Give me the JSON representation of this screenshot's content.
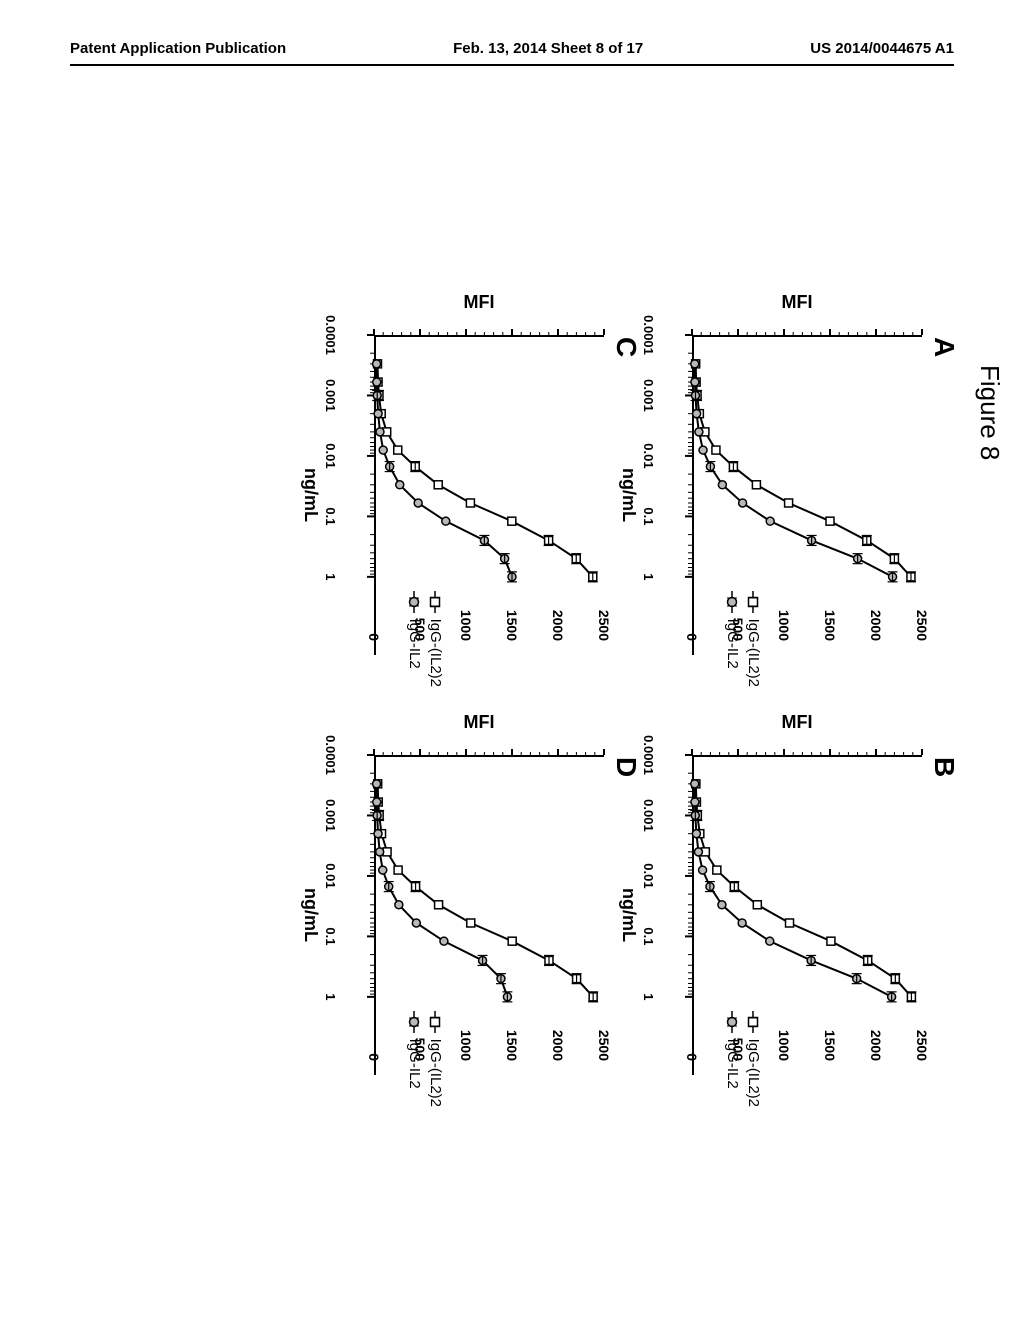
{
  "header": {
    "left": "Patent Application Publication",
    "center": "Feb. 13, 2014  Sheet 8 of 17",
    "right": "US 2014/0044675 A1"
  },
  "figure": {
    "title": "Figure 8",
    "panels": [
      "A",
      "B",
      "C",
      "D"
    ],
    "y_label": "MFI",
    "x_label": "ng/mL",
    "y_ticks": [
      0,
      500,
      1000,
      1500,
      2000,
      2500
    ],
    "x_ticks": [
      0.0001,
      0.001,
      0.01,
      0.1,
      1
    ],
    "ylim": [
      0,
      2500
    ],
    "xlim_log": [
      -4,
      0.3
    ],
    "legend": [
      {
        "label": "IgG-(IL2)2",
        "marker": "square"
      },
      {
        "label": "IgG-IL2",
        "marker": "circle"
      }
    ],
    "line_color": "#000000",
    "marker_stroke": "#000000",
    "square_fill": "#ffffff",
    "circle_fill": "#b8b8b8",
    "line_width": 2,
    "marker_size": 8,
    "panel_data": {
      "A": {
        "series1": [
          {
            "x": 0.0003,
            "y": 40
          },
          {
            "x": 0.0006,
            "y": 45
          },
          {
            "x": 0.001,
            "y": 55
          },
          {
            "x": 0.002,
            "y": 80
          },
          {
            "x": 0.004,
            "y": 140
          },
          {
            "x": 0.008,
            "y": 260
          },
          {
            "x": 0.015,
            "y": 450
          },
          {
            "x": 0.03,
            "y": 700
          },
          {
            "x": 0.06,
            "y": 1050
          },
          {
            "x": 0.12,
            "y": 1500
          },
          {
            "x": 0.25,
            "y": 1900
          },
          {
            "x": 0.5,
            "y": 2200
          },
          {
            "x": 1,
            "y": 2380
          }
        ],
        "series2": [
          {
            "x": 0.0003,
            "y": 30
          },
          {
            "x": 0.0006,
            "y": 32
          },
          {
            "x": 0.001,
            "y": 38
          },
          {
            "x": 0.002,
            "y": 50
          },
          {
            "x": 0.004,
            "y": 75
          },
          {
            "x": 0.008,
            "y": 120
          },
          {
            "x": 0.015,
            "y": 200
          },
          {
            "x": 0.03,
            "y": 330
          },
          {
            "x": 0.06,
            "y": 550
          },
          {
            "x": 0.12,
            "y": 850
          },
          {
            "x": 0.25,
            "y": 1300
          },
          {
            "x": 0.5,
            "y": 1800
          },
          {
            "x": 1,
            "y": 2180
          }
        ]
      },
      "B": {
        "series1": [
          {
            "x": 0.0003,
            "y": 42
          },
          {
            "x": 0.0006,
            "y": 48
          },
          {
            "x": 0.001,
            "y": 58
          },
          {
            "x": 0.002,
            "y": 85
          },
          {
            "x": 0.004,
            "y": 145
          },
          {
            "x": 0.008,
            "y": 270
          },
          {
            "x": 0.015,
            "y": 460
          },
          {
            "x": 0.03,
            "y": 710
          },
          {
            "x": 0.06,
            "y": 1060
          },
          {
            "x": 0.12,
            "y": 1510
          },
          {
            "x": 0.25,
            "y": 1910
          },
          {
            "x": 0.5,
            "y": 2210
          },
          {
            "x": 1,
            "y": 2385
          }
        ],
        "series2": [
          {
            "x": 0.0003,
            "y": 30
          },
          {
            "x": 0.0006,
            "y": 32
          },
          {
            "x": 0.001,
            "y": 36
          },
          {
            "x": 0.002,
            "y": 48
          },
          {
            "x": 0.004,
            "y": 70
          },
          {
            "x": 0.008,
            "y": 115
          },
          {
            "x": 0.015,
            "y": 195
          },
          {
            "x": 0.03,
            "y": 325
          },
          {
            "x": 0.06,
            "y": 545
          },
          {
            "x": 0.12,
            "y": 845
          },
          {
            "x": 0.25,
            "y": 1295
          },
          {
            "x": 0.5,
            "y": 1790
          },
          {
            "x": 1,
            "y": 2170
          }
        ]
      },
      "C": {
        "series1": [
          {
            "x": 0.0003,
            "y": 38
          },
          {
            "x": 0.0006,
            "y": 44
          },
          {
            "x": 0.001,
            "y": 54
          },
          {
            "x": 0.002,
            "y": 78
          },
          {
            "x": 0.004,
            "y": 138
          },
          {
            "x": 0.008,
            "y": 258
          },
          {
            "x": 0.015,
            "y": 448
          },
          {
            "x": 0.03,
            "y": 698
          },
          {
            "x": 0.06,
            "y": 1048
          },
          {
            "x": 0.12,
            "y": 1498
          },
          {
            "x": 0.25,
            "y": 1898
          },
          {
            "x": 0.5,
            "y": 2198
          },
          {
            "x": 1,
            "y": 2378
          }
        ],
        "series2": [
          {
            "x": 0.0003,
            "y": 28
          },
          {
            "x": 0.0006,
            "y": 30
          },
          {
            "x": 0.001,
            "y": 35
          },
          {
            "x": 0.002,
            "y": 45
          },
          {
            "x": 0.004,
            "y": 65
          },
          {
            "x": 0.008,
            "y": 100
          },
          {
            "x": 0.015,
            "y": 170
          },
          {
            "x": 0.03,
            "y": 280
          },
          {
            "x": 0.06,
            "y": 480
          },
          {
            "x": 0.12,
            "y": 780
          },
          {
            "x": 0.25,
            "y": 1200
          },
          {
            "x": 0.5,
            "y": 1420
          },
          {
            "x": 1,
            "y": 1500
          }
        ]
      },
      "D": {
        "series1": [
          {
            "x": 0.0003,
            "y": 40
          },
          {
            "x": 0.0006,
            "y": 46
          },
          {
            "x": 0.001,
            "y": 56
          },
          {
            "x": 0.002,
            "y": 82
          },
          {
            "x": 0.004,
            "y": 142
          },
          {
            "x": 0.008,
            "y": 262
          },
          {
            "x": 0.015,
            "y": 452
          },
          {
            "x": 0.03,
            "y": 702
          },
          {
            "x": 0.06,
            "y": 1052
          },
          {
            "x": 0.12,
            "y": 1502
          },
          {
            "x": 0.25,
            "y": 1902
          },
          {
            "x": 0.5,
            "y": 2202
          },
          {
            "x": 1,
            "y": 2382
          }
        ],
        "series2": [
          {
            "x": 0.0003,
            "y": 28
          },
          {
            "x": 0.0006,
            "y": 30
          },
          {
            "x": 0.001,
            "y": 34
          },
          {
            "x": 0.002,
            "y": 44
          },
          {
            "x": 0.004,
            "y": 62
          },
          {
            "x": 0.008,
            "y": 95
          },
          {
            "x": 0.015,
            "y": 160
          },
          {
            "x": 0.03,
            "y": 270
          },
          {
            "x": 0.06,
            "y": 460
          },
          {
            "x": 0.12,
            "y": 760
          },
          {
            "x": 0.25,
            "y": 1180
          },
          {
            "x": 0.5,
            "y": 1380
          },
          {
            "x": 1,
            "y": 1450
          }
        ]
      }
    }
  }
}
